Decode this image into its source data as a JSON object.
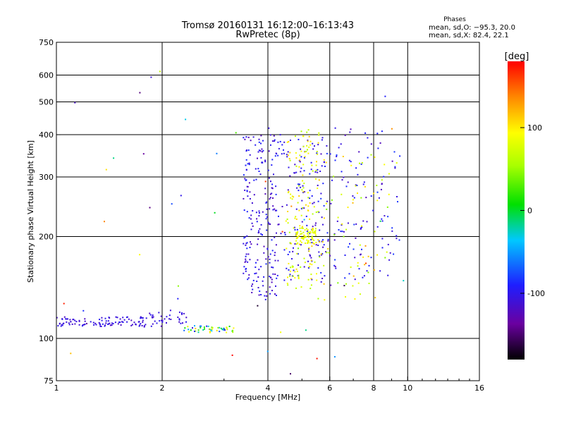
{
  "chart_data": {
    "type": "scatter",
    "title": "Tromsø 20160131 16:12:00–16:13:43",
    "subtitle": "RwPretec (8p)",
    "xlabel": "Frequency [MHz]",
    "ylabel": "Stationary phase Virtual Height [km]",
    "xscale": "log2",
    "yscale": "log",
    "xlim": [
      1,
      16
    ],
    "ylim": [
      75,
      750
    ],
    "xticks": [
      1,
      2,
      4,
      6,
      8,
      10,
      16
    ],
    "yticks": [
      75,
      100,
      200,
      300,
      400,
      500,
      600,
      750
    ],
    "grid_x": [
      2,
      4,
      6,
      8,
      10
    ],
    "grid_y": [
      100,
      200,
      300,
      400,
      500,
      600
    ],
    "colorbar": {
      "label": "[deg]",
      "range": [
        -180,
        180
      ],
      "ticks": [
        -100,
        0,
        100
      ]
    },
    "stats": {
      "heading": "Phases",
      "o_line": "mean, sd,O: −95.3, 20.0",
      "x_line": "mean, sd,X:  82.4, 22.1"
    },
    "clusters": [
      {
        "name": "low-band trace",
        "x_range": [
          1.0,
          2.35
        ],
        "y_range": [
          108,
          116
        ],
        "phase": [
          -120,
          -95
        ],
        "count": 140
      },
      {
        "name": "O-mode F region",
        "x_range": [
          3.4,
          4.3
        ],
        "y_range": [
          130,
          400
        ],
        "phase": [
          -125,
          -85
        ],
        "count": 220
      },
      {
        "name": "O-mode F upper",
        "x_range": [
          4.3,
          5.8
        ],
        "y_range": [
          145,
          400
        ],
        "phase": [
          -120,
          -85
        ],
        "count": 130
      },
      {
        "name": "X-mode F region",
        "x_range": [
          4.5,
          5.6
        ],
        "y_range": [
          140,
          420
        ],
        "phase": [
          55,
          115
        ],
        "count": 140
      },
      {
        "name": "X-mode cluster 200km",
        "x_range": [
          4.8,
          5.5
        ],
        "y_range": [
          190,
          212
        ],
        "phase": [
          70,
          100
        ],
        "count": 70
      },
      {
        "name": "O-mode high band",
        "x_range": [
          5.5,
          9.5
        ],
        "y_range": [
          140,
          420
        ],
        "phase": [
          -125,
          -80
        ],
        "count": 130
      },
      {
        "name": "X-mode high band",
        "x_range": [
          5.5,
          9.0
        ],
        "y_range": [
          130,
          350
        ],
        "phase": [
          40,
          120
        ],
        "count": 70
      },
      {
        "name": "E-layer near 105km",
        "x_range": [
          2.3,
          3.2
        ],
        "y_range": [
          104,
          109
        ],
        "phase": [
          -110,
          110
        ],
        "count": 50
      },
      {
        "name": "scattered noise",
        "x_range": [
          1.0,
          11.0
        ],
        "y_range": [
          75,
          700
        ],
        "phase": [
          -180,
          180
        ],
        "count": 45
      }
    ]
  }
}
